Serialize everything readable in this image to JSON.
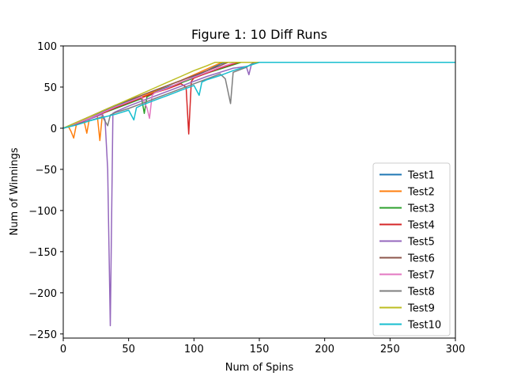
{
  "chart_data": {
    "type": "line",
    "title": "Figure 1: 10 Diff Runs",
    "xlabel": "Num of Spins",
    "ylabel": "Num of Winnings",
    "xlim": [
      0,
      300
    ],
    "ylim": [
      -255,
      100
    ],
    "xticks": [
      0,
      50,
      100,
      150,
      200,
      250,
      300
    ],
    "yticks": [
      100,
      50,
      0,
      -50,
      -100,
      -150,
      -200,
      -250
    ],
    "xtick_labels": [
      "0",
      "50",
      "100",
      "150",
      "200",
      "250",
      "300"
    ],
    "ytick_labels": [
      "100",
      "50",
      "0",
      "−50",
      "−100",
      "−150",
      "−200",
      "−250"
    ],
    "grid": false,
    "legend_position": "lower right",
    "series": [
      {
        "name": "Test1",
        "color": "#1f77b4",
        "points": [
          [
            0,
            0
          ],
          [
            10,
            5
          ],
          [
            20,
            12
          ],
          [
            30,
            20
          ],
          [
            40,
            27
          ],
          [
            50,
            33
          ],
          [
            60,
            38
          ],
          [
            70,
            44
          ],
          [
            80,
            50
          ],
          [
            90,
            55
          ],
          [
            100,
            63
          ],
          [
            110,
            70
          ],
          [
            120,
            78
          ],
          [
            124,
            80
          ],
          [
            300,
            80
          ]
        ]
      },
      {
        "name": "Test2",
        "color": "#ff7f0e",
        "points": [
          [
            0,
            0
          ],
          [
            4,
            2
          ],
          [
            6,
            -4
          ],
          [
            8,
            -12
          ],
          [
            10,
            4
          ],
          [
            16,
            8
          ],
          [
            18,
            -6
          ],
          [
            20,
            12
          ],
          [
            26,
            16
          ],
          [
            28,
            -15
          ],
          [
            30,
            18
          ],
          [
            40,
            25
          ],
          [
            50,
            32
          ],
          [
            60,
            38
          ],
          [
            70,
            45
          ],
          [
            80,
            52
          ],
          [
            90,
            58
          ],
          [
            100,
            65
          ],
          [
            110,
            72
          ],
          [
            120,
            79
          ],
          [
            122,
            80
          ],
          [
            300,
            80
          ]
        ]
      },
      {
        "name": "Test3",
        "color": "#2ca02c",
        "points": [
          [
            0,
            0
          ],
          [
            10,
            6
          ],
          [
            20,
            12
          ],
          [
            30,
            18
          ],
          [
            40,
            24
          ],
          [
            50,
            30
          ],
          [
            60,
            36
          ],
          [
            62,
            18
          ],
          [
            64,
            38
          ],
          [
            70,
            43
          ],
          [
            80,
            49
          ],
          [
            90,
            55
          ],
          [
            100,
            61
          ],
          [
            110,
            67
          ],
          [
            120,
            72
          ],
          [
            130,
            77
          ],
          [
            136,
            80
          ],
          [
            300,
            80
          ]
        ]
      },
      {
        "name": "Test4",
        "color": "#d62728",
        "points": [
          [
            0,
            0
          ],
          [
            10,
            5
          ],
          [
            20,
            11
          ],
          [
            30,
            18
          ],
          [
            40,
            25
          ],
          [
            50,
            31
          ],
          [
            60,
            37
          ],
          [
            70,
            43
          ],
          [
            80,
            48
          ],
          [
            90,
            54
          ],
          [
            94,
            50
          ],
          [
            96,
            -7
          ],
          [
            98,
            57
          ],
          [
            100,
            61
          ],
          [
            110,
            67
          ],
          [
            120,
            73
          ],
          [
            130,
            78
          ],
          [
            134,
            80
          ],
          [
            300,
            80
          ]
        ]
      },
      {
        "name": "Test5",
        "color": "#9467bd",
        "points": [
          [
            0,
            0
          ],
          [
            10,
            6
          ],
          [
            20,
            11
          ],
          [
            30,
            17
          ],
          [
            32,
            10
          ],
          [
            34,
            -50
          ],
          [
            36,
            -240
          ],
          [
            38,
            18
          ],
          [
            40,
            20
          ],
          [
            50,
            27
          ],
          [
            60,
            33
          ],
          [
            70,
            39
          ],
          [
            80,
            45
          ],
          [
            90,
            51
          ],
          [
            100,
            57
          ],
          [
            110,
            63
          ],
          [
            120,
            68
          ],
          [
            130,
            73
          ],
          [
            140,
            75
          ],
          [
            142,
            65
          ],
          [
            144,
            78
          ],
          [
            148,
            80
          ],
          [
            300,
            80
          ]
        ]
      },
      {
        "name": "Test6",
        "color": "#8c564b",
        "points": [
          [
            0,
            0
          ],
          [
            10,
            7
          ],
          [
            20,
            14
          ],
          [
            30,
            21
          ],
          [
            40,
            28
          ],
          [
            50,
            34
          ],
          [
            60,
            40
          ],
          [
            70,
            46
          ],
          [
            80,
            52
          ],
          [
            90,
            58
          ],
          [
            100,
            64
          ],
          [
            110,
            70
          ],
          [
            120,
            76
          ],
          [
            126,
            80
          ],
          [
            300,
            80
          ]
        ]
      },
      {
        "name": "Test7",
        "color": "#e377c2",
        "points": [
          [
            0,
            0
          ],
          [
            10,
            6
          ],
          [
            20,
            12
          ],
          [
            30,
            19
          ],
          [
            40,
            26
          ],
          [
            50,
            32
          ],
          [
            60,
            38
          ],
          [
            64,
            25
          ],
          [
            66,
            12
          ],
          [
            68,
            40
          ],
          [
            70,
            43
          ],
          [
            80,
            49
          ],
          [
            90,
            56
          ],
          [
            100,
            62
          ],
          [
            110,
            68
          ],
          [
            120,
            74
          ],
          [
            130,
            79
          ],
          [
            132,
            80
          ],
          [
            300,
            80
          ]
        ]
      },
      {
        "name": "Test8",
        "color": "#7f7f7f",
        "points": [
          [
            0,
            0
          ],
          [
            10,
            4
          ],
          [
            20,
            9
          ],
          [
            30,
            14
          ],
          [
            34,
            3
          ],
          [
            36,
            16
          ],
          [
            40,
            19
          ],
          [
            50,
            24
          ],
          [
            60,
            30
          ],
          [
            70,
            36
          ],
          [
            80,
            42
          ],
          [
            90,
            48
          ],
          [
            100,
            54
          ],
          [
            110,
            60
          ],
          [
            120,
            66
          ],
          [
            124,
            60
          ],
          [
            128,
            30
          ],
          [
            130,
            68
          ],
          [
            140,
            74
          ],
          [
            146,
            80
          ],
          [
            300,
            80
          ]
        ]
      },
      {
        "name": "Test9",
        "color": "#bcbd22",
        "points": [
          [
            0,
            0
          ],
          [
            10,
            7
          ],
          [
            20,
            14
          ],
          [
            30,
            21
          ],
          [
            40,
            28
          ],
          [
            50,
            35
          ],
          [
            60,
            42
          ],
          [
            70,
            49
          ],
          [
            80,
            56
          ],
          [
            90,
            63
          ],
          [
            100,
            70
          ],
          [
            110,
            76
          ],
          [
            116,
            80
          ],
          [
            300,
            80
          ]
        ]
      },
      {
        "name": "Test10",
        "color": "#17becf",
        "points": [
          [
            0,
            0
          ],
          [
            10,
            4
          ],
          [
            20,
            9
          ],
          [
            30,
            13
          ],
          [
            40,
            17
          ],
          [
            50,
            22
          ],
          [
            54,
            10
          ],
          [
            56,
            25
          ],
          [
            60,
            28
          ],
          [
            70,
            34
          ],
          [
            80,
            40
          ],
          [
            90,
            46
          ],
          [
            100,
            52
          ],
          [
            104,
            40
          ],
          [
            106,
            56
          ],
          [
            110,
            59
          ],
          [
            120,
            64
          ],
          [
            130,
            70
          ],
          [
            140,
            75
          ],
          [
            150,
            80
          ],
          [
            300,
            80
          ]
        ]
      }
    ]
  }
}
